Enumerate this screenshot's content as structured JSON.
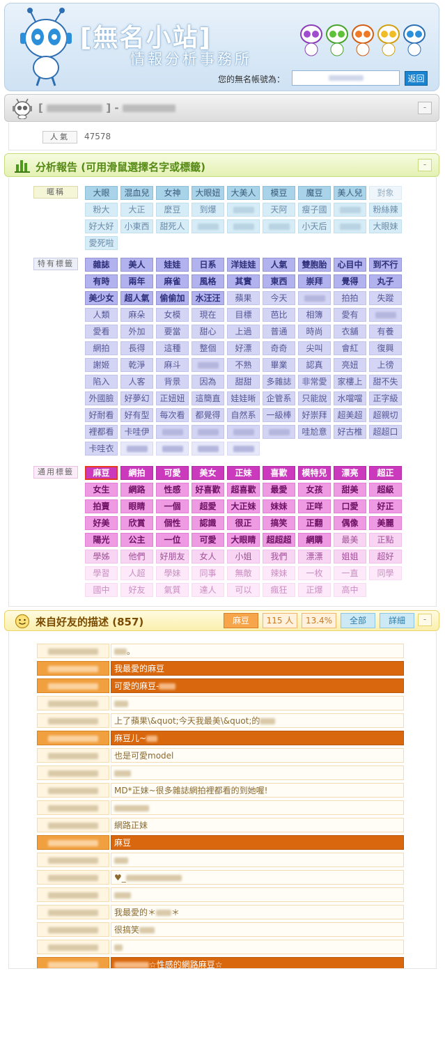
{
  "header": {
    "title": "[無名小站]",
    "subtitle": "情報分析事務所",
    "account_label": "您的無名帳號為：",
    "account_value": "",
    "back_button": "返回"
  },
  "user_bar": {
    "open_bracket": "[",
    "close_bracket": "] -",
    "minimize": "-"
  },
  "popularity": {
    "label": "人氣",
    "value": "47578"
  },
  "analysis": {
    "title": "分析報告 (可用滑鼠選擇名字或標籤)",
    "minimize": "-",
    "sections": [
      {
        "label": "暱稱",
        "tags": [
          {
            "t": "大眼",
            "l": 0
          },
          {
            "t": "混血兒",
            "l": 0
          },
          {
            "t": "女神",
            "l": 0
          },
          {
            "t": "大眼妞",
            "l": 0
          },
          {
            "t": "大美人",
            "l": 0
          },
          {
            "t": "模豆",
            "l": 0
          },
          {
            "t": "魔豆",
            "l": 0
          },
          {
            "t": "美人兒",
            "l": 0
          },
          {
            "t": "對象",
            "l": 2
          },
          {
            "t": "粉大",
            "l": 1
          },
          {
            "t": "大正",
            "l": 1
          },
          {
            "t": "麼豆",
            "l": 1
          },
          {
            "t": "到爆",
            "l": 1
          },
          {
            "t": "",
            "l": 1
          },
          {
            "t": "天阿",
            "l": 1
          },
          {
            "t": "瘦子國",
            "l": 1
          },
          {
            "t": "",
            "l": 1
          },
          {
            "t": "粉絲辣",
            "l": 1
          },
          {
            "t": "好大好",
            "l": 1
          },
          {
            "t": "小東西",
            "l": 1
          },
          {
            "t": "甜死人",
            "l": 1
          },
          {
            "t": "",
            "l": 1
          },
          {
            "t": "",
            "l": 1
          },
          {
            "t": "",
            "l": 1
          },
          {
            "t": "小天后",
            "l": 1
          },
          {
            "t": "",
            "l": 1
          },
          {
            "t": "大眼妹",
            "l": 1
          },
          {
            "t": "愛死啦",
            "l": 1
          }
        ]
      },
      {
        "label": "特有標籤",
        "tags": [
          {
            "t": "雜誌",
            "l": 0
          },
          {
            "t": "美人",
            "l": 0
          },
          {
            "t": "娃娃",
            "l": 0
          },
          {
            "t": "日系",
            "l": 0
          },
          {
            "t": "洋娃娃",
            "l": 0
          },
          {
            "t": "人氣",
            "l": 0
          },
          {
            "t": "雙胞胎",
            "l": 0
          },
          {
            "t": "心目中",
            "l": 0
          },
          {
            "t": "到不行",
            "l": 0
          },
          {
            "t": "有時",
            "l": 0
          },
          {
            "t": "兩年",
            "l": 0
          },
          {
            "t": "麻雀",
            "l": 0
          },
          {
            "t": "風格",
            "l": 0
          },
          {
            "t": "其實",
            "l": 0
          },
          {
            "t": "東西",
            "l": 0
          },
          {
            "t": "崇拜",
            "l": 0
          },
          {
            "t": "覺得",
            "l": 0
          },
          {
            "t": "丸子",
            "l": 0
          },
          {
            "t": "美少女",
            "l": 0
          },
          {
            "t": "超人氣",
            "l": 0
          },
          {
            "t": "偷偷加",
            "l": 0
          },
          {
            "t": "水汪汪",
            "l": 0
          },
          {
            "t": "蘋果",
            "l": 1
          },
          {
            "t": "今天",
            "l": 1
          },
          {
            "t": "",
            "l": 1
          },
          {
            "t": "拍拍",
            "l": 1
          },
          {
            "t": "失蹤",
            "l": 1
          },
          {
            "t": "人類",
            "l": 1
          },
          {
            "t": "麻朵",
            "l": 1
          },
          {
            "t": "女模",
            "l": 1
          },
          {
            "t": "現在",
            "l": 1
          },
          {
            "t": "目標",
            "l": 1
          },
          {
            "t": "芭比",
            "l": 1
          },
          {
            "t": "相簿",
            "l": 1
          },
          {
            "t": "愛有",
            "l": 1
          },
          {
            "t": "",
            "l": 1
          },
          {
            "t": "愛看",
            "l": 1
          },
          {
            "t": "外加",
            "l": 1
          },
          {
            "t": "要當",
            "l": 1
          },
          {
            "t": "甜心",
            "l": 1
          },
          {
            "t": "上過",
            "l": 1
          },
          {
            "t": "普通",
            "l": 1
          },
          {
            "t": "時尚",
            "l": 1
          },
          {
            "t": "衣舖",
            "l": 1
          },
          {
            "t": "有養",
            "l": 1
          },
          {
            "t": "網拍",
            "l": 1
          },
          {
            "t": "長得",
            "l": 1
          },
          {
            "t": "這種",
            "l": 1
          },
          {
            "t": "整個",
            "l": 1
          },
          {
            "t": "好漂",
            "l": 1
          },
          {
            "t": "奇奇",
            "l": 1
          },
          {
            "t": "尖叫",
            "l": 1
          },
          {
            "t": "會紅",
            "l": 1
          },
          {
            "t": "復興",
            "l": 1
          },
          {
            "t": "謝姬",
            "l": 1
          },
          {
            "t": "乾淨",
            "l": 1
          },
          {
            "t": "麻斗",
            "l": 1
          },
          {
            "t": "",
            "l": 1
          },
          {
            "t": "不熟",
            "l": 1
          },
          {
            "t": "畢業",
            "l": 1
          },
          {
            "t": "認真",
            "l": 1
          },
          {
            "t": "亮妞",
            "l": 1
          },
          {
            "t": "上徬",
            "l": 1
          },
          {
            "t": "陷入",
            "l": 1
          },
          {
            "t": "人客",
            "l": 1
          },
          {
            "t": "背景",
            "l": 1
          },
          {
            "t": "因為",
            "l": 1
          },
          {
            "t": "甜甜",
            "l": 1
          },
          {
            "t": "多雜誌",
            "l": 1
          },
          {
            "t": "非常愛",
            "l": 1
          },
          {
            "t": "家樓上",
            "l": 1
          },
          {
            "t": "甜不失",
            "l": 1
          },
          {
            "t": "外國臉",
            "l": 1
          },
          {
            "t": "好夢幻",
            "l": 1
          },
          {
            "t": "正妞妞",
            "l": 1
          },
          {
            "t": "這簡直",
            "l": 1
          },
          {
            "t": "娃娃晰",
            "l": 1
          },
          {
            "t": "企管系",
            "l": 1
          },
          {
            "t": "只能說",
            "l": 1
          },
          {
            "t": "水噹噹",
            "l": 1
          },
          {
            "t": "正字級",
            "l": 1
          },
          {
            "t": "好耐看",
            "l": 1
          },
          {
            "t": "好有型",
            "l": 1
          },
          {
            "t": "每次看",
            "l": 1
          },
          {
            "t": "都覺得",
            "l": 1
          },
          {
            "t": "自然系",
            "l": 1
          },
          {
            "t": "一級棒",
            "l": 1
          },
          {
            "t": "好崇拜",
            "l": 1
          },
          {
            "t": "超美超",
            "l": 1
          },
          {
            "t": "超親切",
            "l": 1
          },
          {
            "t": "裡都看",
            "l": 1
          },
          {
            "t": "卡哇伊",
            "l": 1
          },
          {
            "t": "",
            "l": 1
          },
          {
            "t": "",
            "l": 1
          },
          {
            "t": "",
            "l": 1
          },
          {
            "t": "",
            "l": 1
          },
          {
            "t": "哇尬意",
            "l": 1
          },
          {
            "t": "好古椎",
            "l": 1
          },
          {
            "t": "超超口",
            "l": 1
          },
          {
            "t": "卡哇衣",
            "l": 1
          },
          {
            "t": "",
            "l": 2
          },
          {
            "t": "",
            "l": 2
          },
          {
            "t": "",
            "l": 2
          },
          {
            "t": "",
            "l": 2
          }
        ]
      },
      {
        "label": "通用標籤",
        "tags": [
          {
            "t": "麻豆",
            "l": 0,
            "sel": true
          },
          {
            "t": "網拍",
            "l": 0
          },
          {
            "t": "可愛",
            "l": 0
          },
          {
            "t": "美女",
            "l": 0
          },
          {
            "t": "正妹",
            "l": 0
          },
          {
            "t": "喜歡",
            "l": 0
          },
          {
            "t": "模特兒",
            "l": 0
          },
          {
            "t": "漂亮",
            "l": 0
          },
          {
            "t": "超正",
            "l": 0
          },
          {
            "t": "女生",
            "l": 1
          },
          {
            "t": "網路",
            "l": 1
          },
          {
            "t": "性感",
            "l": 1
          },
          {
            "t": "好喜歡",
            "l": 1
          },
          {
            "t": "超喜歡",
            "l": 1
          },
          {
            "t": "最愛",
            "l": 1
          },
          {
            "t": "女孩",
            "l": 1
          },
          {
            "t": "甜美",
            "l": 1
          },
          {
            "t": "超級",
            "l": 1
          },
          {
            "t": "拍賣",
            "l": 1
          },
          {
            "t": "眼睛",
            "l": 1
          },
          {
            "t": "一個",
            "l": 1
          },
          {
            "t": "超愛",
            "l": 1
          },
          {
            "t": "大正妹",
            "l": 1
          },
          {
            "t": "妹妹",
            "l": 1
          },
          {
            "t": "正咩",
            "l": 1
          },
          {
            "t": "口愛",
            "l": 1
          },
          {
            "t": "好正",
            "l": 1
          },
          {
            "t": "好美",
            "l": 1
          },
          {
            "t": "欣賞",
            "l": 1
          },
          {
            "t": "個性",
            "l": 1
          },
          {
            "t": "認識",
            "l": 1
          },
          {
            "t": "很正",
            "l": 1
          },
          {
            "t": "搞笑",
            "l": 1
          },
          {
            "t": "正翻",
            "l": 1
          },
          {
            "t": "偶像",
            "l": 1
          },
          {
            "t": "美麗",
            "l": 1
          },
          {
            "t": "陽光",
            "l": 1
          },
          {
            "t": "公主",
            "l": 1
          },
          {
            "t": "一位",
            "l": 1
          },
          {
            "t": "可愛",
            "l": 1
          },
          {
            "t": "大眼睛",
            "l": 1
          },
          {
            "t": "超超超",
            "l": 1
          },
          {
            "t": "網購",
            "l": 1
          },
          {
            "t": "最美",
            "l": 2
          },
          {
            "t": "正點",
            "l": 2
          },
          {
            "t": "學姊",
            "l": 2
          },
          {
            "t": "他們",
            "l": 2
          },
          {
            "t": "好朋友",
            "l": 2
          },
          {
            "t": "女人",
            "l": 2
          },
          {
            "t": "小姐",
            "l": 2
          },
          {
            "t": "我們",
            "l": 2
          },
          {
            "t": "漂漂",
            "l": 2
          },
          {
            "t": "姐姐",
            "l": 2
          },
          {
            "t": "超好",
            "l": 2
          },
          {
            "t": "學習",
            "l": 3
          },
          {
            "t": "人超",
            "l": 3
          },
          {
            "t": "學妹",
            "l": 3
          },
          {
            "t": "同事",
            "l": 3
          },
          {
            "t": "無敵",
            "l": 3
          },
          {
            "t": "辣妹",
            "l": 3
          },
          {
            "t": "一枚",
            "l": 3
          },
          {
            "t": "一直",
            "l": 3
          },
          {
            "t": "同學",
            "l": 3
          },
          {
            "t": "國中",
            "l": 3
          },
          {
            "t": "好友",
            "l": 3
          },
          {
            "t": "氣質",
            "l": 3
          },
          {
            "t": "達人",
            "l": 3
          },
          {
            "t": "可以",
            "l": 3
          },
          {
            "t": "瘋狂",
            "l": 3
          },
          {
            "t": "正爆",
            "l": 3
          },
          {
            "t": "高中",
            "l": 3
          }
        ]
      }
    ]
  },
  "friends": {
    "title": "來自好友的描述 (857)",
    "filter_tag": "麻豆",
    "count": "115 人",
    "percent": "13.4%",
    "all_button": "全部",
    "detail_button": "詳細",
    "minimize": "-",
    "rows": [
      {
        "h": 0,
        "pre": "",
        "post": "。",
        "blur": 18
      },
      {
        "h": 1,
        "pre": "我最愛的麻豆",
        "post": "",
        "blur": 0
      },
      {
        "h": 1,
        "pre": "可愛的麻豆-",
        "post": "",
        "blur": 24
      },
      {
        "h": 0,
        "pre": "",
        "post": "",
        "blur": 20
      },
      {
        "h": 0,
        "pre": "上了蘋果\\&quot;今天我最美\\&quot;的",
        "post": "",
        "blur": 22
      },
      {
        "h": 1,
        "pre": "麻豆儿~",
        "post": "",
        "blur": 16
      },
      {
        "h": 0,
        "pre": "也是可愛model",
        "post": "",
        "blur": 0
      },
      {
        "h": 0,
        "pre": "",
        "post": "",
        "blur": 24
      },
      {
        "h": 0,
        "pre": "MD*正妹~很多雜誌網拍裡都看的到她喔!",
        "post": "",
        "blur": 0
      },
      {
        "h": 0,
        "pre": "",
        "post": "",
        "blur": 50
      },
      {
        "h": 0,
        "pre": "網路正妹",
        "post": "",
        "blur": 0
      },
      {
        "h": 1,
        "pre": "麻豆",
        "post": "",
        "blur": 0
      },
      {
        "h": 0,
        "pre": "",
        "post": "",
        "blur": 20
      },
      {
        "h": 0,
        "pre": "♥_",
        "post": "",
        "blur": 80
      },
      {
        "h": 0,
        "pre": "",
        "post": "",
        "blur": 24
      },
      {
        "h": 0,
        "pre": "我最愛的＊",
        "post": "＊",
        "blur": 22
      },
      {
        "h": 0,
        "pre": "很搞笑",
        "post": "",
        "blur": 22
      },
      {
        "h": 0,
        "pre": "",
        "post": "",
        "blur": 12
      },
      {
        "h": 1,
        "pre": "",
        "post": "☆性感的網路麻豆☆",
        "blur": 50
      }
    ]
  }
}
